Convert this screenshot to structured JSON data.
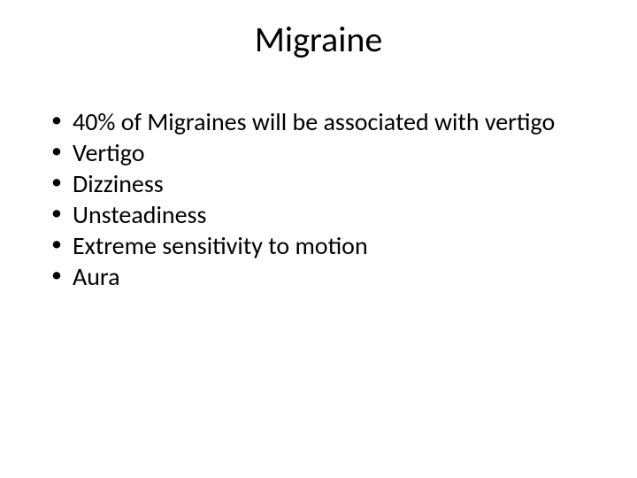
{
  "slide": {
    "title": "Migraine",
    "title_fontsize": 40,
    "body_fontsize": 28,
    "text_color": "#000000",
    "background_color": "#ffffff",
    "bullets": [
      "40% of Migraines will be associated with vertigo",
      "Vertigo",
      "Dizziness",
      "Unsteadiness",
      "Extreme sensitivity to motion",
      "Aura"
    ]
  }
}
